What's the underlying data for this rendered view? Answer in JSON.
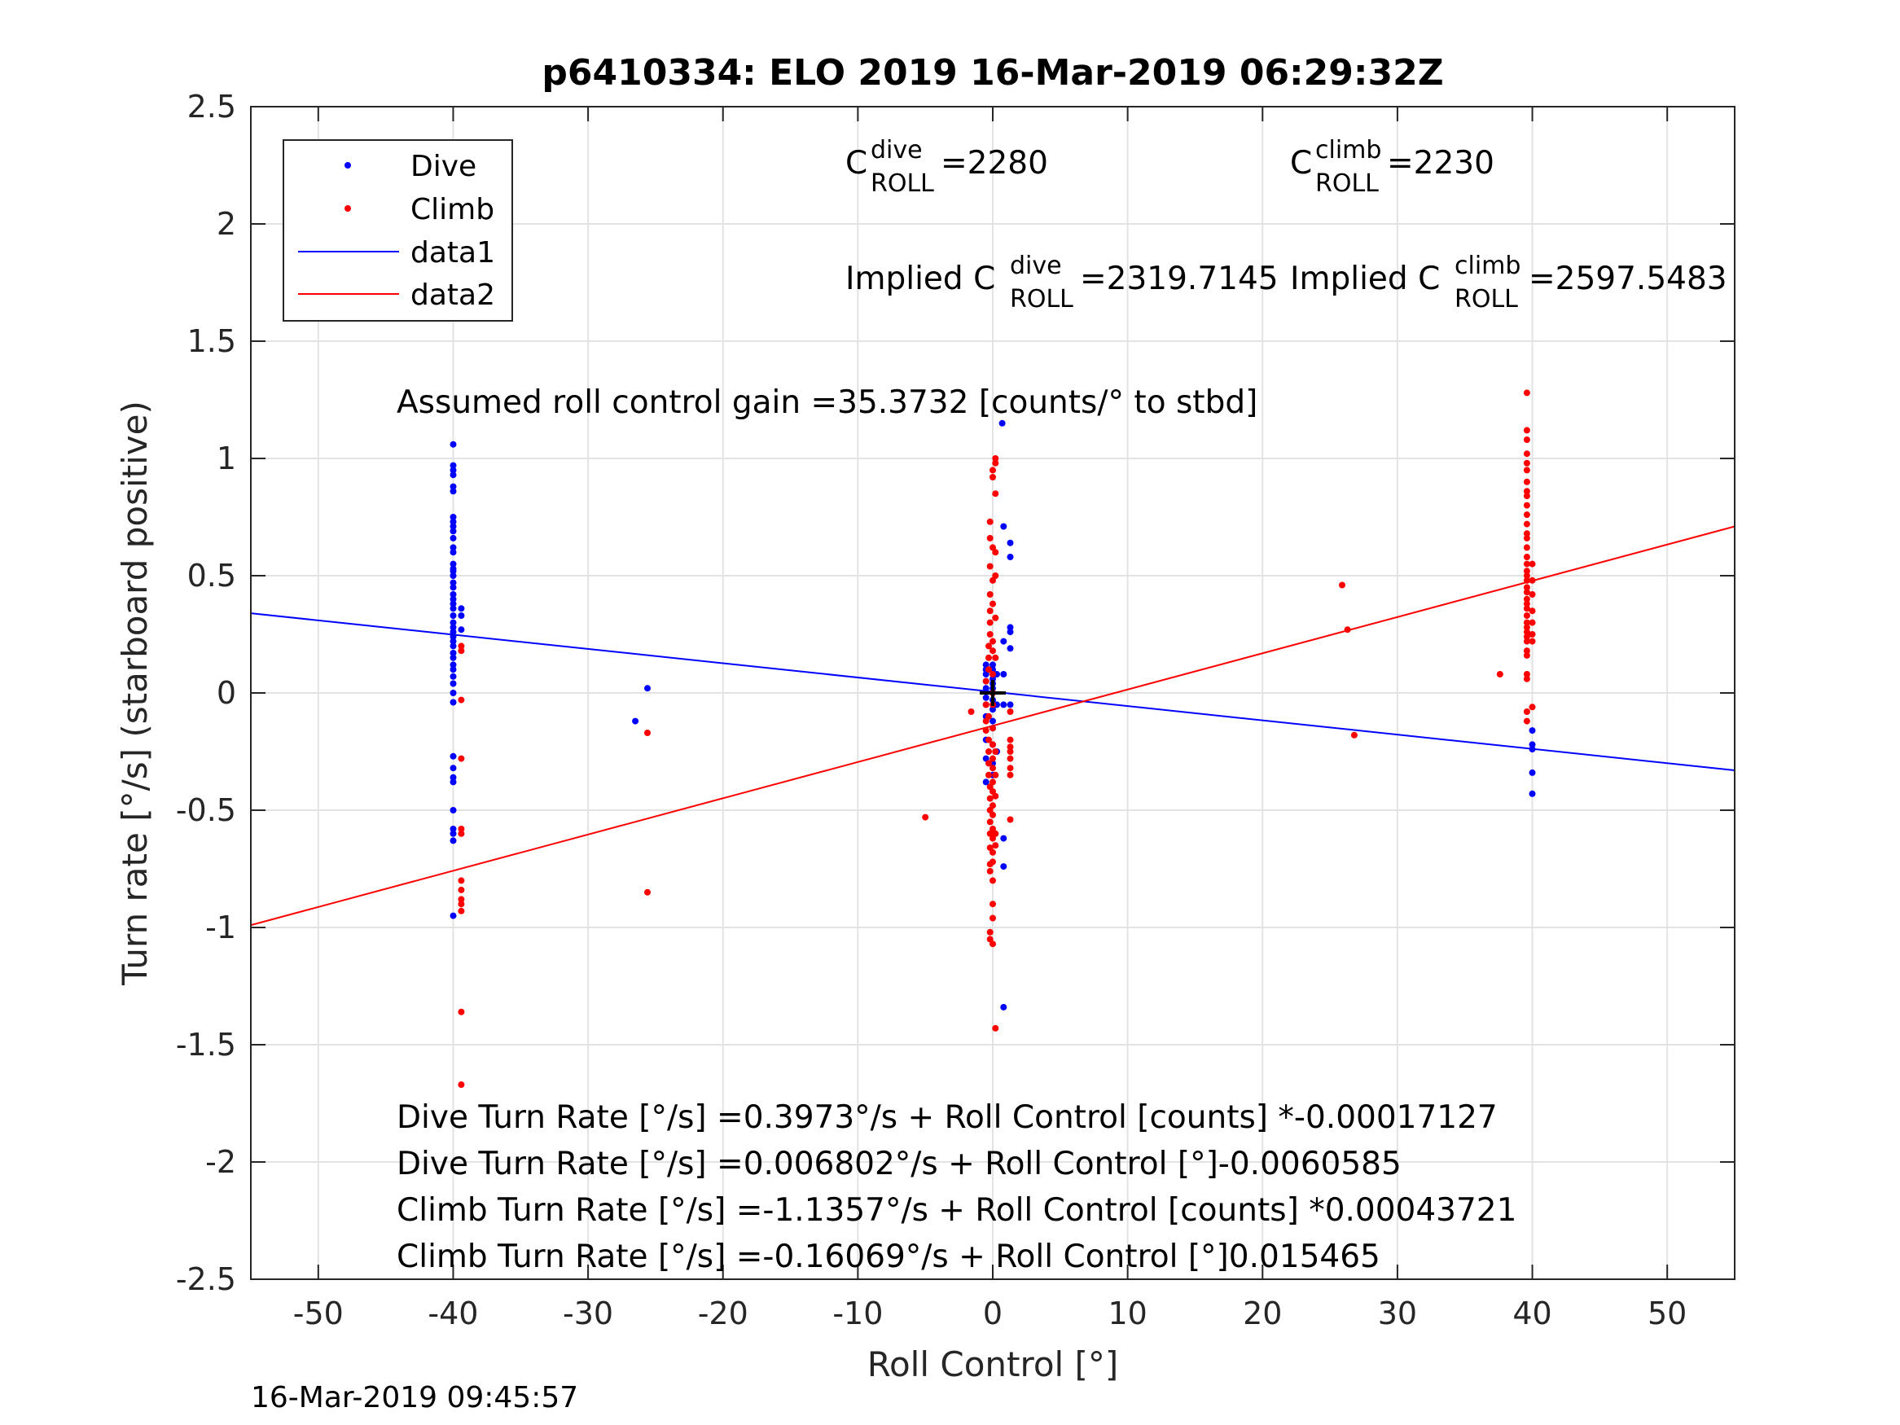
{
  "chart_data": {
    "type": "scatter",
    "title": "p6410334: ELO 2019 16-Mar-2019 06:29:32Z",
    "xlabel": "Roll Control [°]",
    "ylabel": "Turn rate [°/s] (starboard positive)",
    "xlim": [
      -55,
      55
    ],
    "ylim": [
      -2.5,
      2.5
    ],
    "xticks": [
      -50,
      -40,
      -30,
      -20,
      -10,
      0,
      10,
      20,
      30,
      40,
      50
    ],
    "yticks": [
      -2.5,
      -2,
      -1.5,
      -1,
      -0.5,
      0,
      0.5,
      1,
      1.5,
      2,
      2.5
    ],
    "xtick_labels": [
      "-50",
      "-40",
      "-30",
      "-20",
      "-10",
      "0",
      "10",
      "20",
      "30",
      "40",
      "50"
    ],
    "ytick_labels": [
      "-2.5",
      "-2",
      "-1.5",
      "-1",
      "-0.5",
      "0",
      "0.5",
      "1",
      "1.5",
      "2",
      "2.5"
    ],
    "grid": true,
    "legend_position": "top-left",
    "series": [
      {
        "name": "Dive",
        "kind": "scatter",
        "color": "#0000ff",
        "points": [
          [
            -40,
            1.06
          ],
          [
            -40,
            0.97
          ],
          [
            -40,
            0.95
          ],
          [
            -40,
            0.93
          ],
          [
            -40,
            0.88
          ],
          [
            -40,
            0.86
          ],
          [
            -40,
            0.75
          ],
          [
            -40,
            0.73
          ],
          [
            -40,
            0.71
          ],
          [
            -40,
            0.69
          ],
          [
            -40,
            0.66
          ],
          [
            -40,
            0.62
          ],
          [
            -40,
            0.6
          ],
          [
            -40,
            0.55
          ],
          [
            -40,
            0.53
          ],
          [
            -40,
            0.52
          ],
          [
            -40,
            0.5
          ],
          [
            -40,
            0.47
          ],
          [
            -40,
            0.45
          ],
          [
            -40,
            0.42
          ],
          [
            -40,
            0.4
          ],
          [
            -40,
            0.38
          ],
          [
            -40,
            0.36
          ],
          [
            -40,
            0.33
          ],
          [
            -40,
            0.3
          ],
          [
            -40,
            0.28
          ],
          [
            -40,
            0.26
          ],
          [
            -40,
            0.24
          ],
          [
            -40,
            0.22
          ],
          [
            -40,
            0.2
          ],
          [
            -40,
            0.17
          ],
          [
            -40,
            0.15
          ],
          [
            -40,
            0.12
          ],
          [
            -40,
            0.1
          ],
          [
            -40,
            0.07
          ],
          [
            -40,
            0.04
          ],
          [
            -40,
            0.0
          ],
          [
            -40,
            -0.04
          ],
          [
            -40,
            -0.27
          ],
          [
            -40,
            -0.32
          ],
          [
            -40,
            -0.36
          ],
          [
            -40,
            -0.38
          ],
          [
            -40,
            -0.5
          ],
          [
            -40,
            -0.58
          ],
          [
            -40,
            -0.6
          ],
          [
            -40,
            -0.63
          ],
          [
            -40,
            -0.95
          ],
          [
            -39.4,
            0.36
          ],
          [
            -39.4,
            0.33
          ],
          [
            -39.4,
            0.27
          ],
          [
            -26.5,
            -0.12
          ],
          [
            -25.6,
            0.02
          ],
          [
            -0.5,
            0.12
          ],
          [
            -0.5,
            0.1
          ],
          [
            -0.5,
            0.08
          ],
          [
            -0.5,
            0.05
          ],
          [
            -0.5,
            0.02
          ],
          [
            -0.5,
            -0.02
          ],
          [
            -0.5,
            -0.05
          ],
          [
            -0.5,
            -0.1
          ],
          [
            -0.5,
            -0.2
          ],
          [
            -0.5,
            -0.28
          ],
          [
            -0.5,
            -0.38
          ],
          [
            0,
            0.12
          ],
          [
            0,
            0.1
          ],
          [
            0,
            0.06
          ],
          [
            0,
            0.04
          ],
          [
            0,
            0.02
          ],
          [
            0,
            0.0
          ],
          [
            0,
            -0.03
          ],
          [
            0,
            -0.07
          ],
          [
            0,
            -0.12
          ],
          [
            0,
            -0.15
          ],
          [
            0,
            -0.22
          ],
          [
            0,
            -0.3
          ],
          [
            0,
            -0.35
          ],
          [
            0.3,
            0.08
          ],
          [
            0.3,
            -0.05
          ],
          [
            0.3,
            -0.25
          ],
          [
            0.7,
            1.15
          ],
          [
            0.8,
            0.71
          ],
          [
            0.8,
            0.22
          ],
          [
            0.8,
            0.08
          ],
          [
            0.8,
            -0.05
          ],
          [
            0.8,
            -0.62
          ],
          [
            0.8,
            -0.74
          ],
          [
            0.8,
            -1.34
          ],
          [
            1.3,
            0.64
          ],
          [
            1.3,
            0.58
          ],
          [
            1.3,
            0.28
          ],
          [
            1.3,
            0.26
          ],
          [
            1.3,
            0.19
          ],
          [
            1.3,
            -0.05
          ],
          [
            40,
            -0.16
          ],
          [
            40,
            -0.22
          ],
          [
            40,
            -0.24
          ],
          [
            40,
            -0.34
          ],
          [
            40,
            -0.43
          ]
        ]
      },
      {
        "name": "Climb",
        "kind": "scatter",
        "color": "#ff0000",
        "points": [
          [
            -39.4,
            0.2
          ],
          [
            -39.4,
            0.18
          ],
          [
            -39.4,
            -0.03
          ],
          [
            -39.4,
            -0.28
          ],
          [
            -39.4,
            -0.58
          ],
          [
            -39.4,
            -0.6
          ],
          [
            -39.4,
            -0.8
          ],
          [
            -39.4,
            -0.84
          ],
          [
            -39.4,
            -0.88
          ],
          [
            -39.4,
            -0.9
          ],
          [
            -39.4,
            -0.93
          ],
          [
            -39.4,
            -1.36
          ],
          [
            -39.4,
            -1.67
          ],
          [
            -25.6,
            -0.17
          ],
          [
            -25.6,
            -0.85
          ],
          [
            -5,
            -0.53
          ],
          [
            -1.6,
            -0.08
          ],
          [
            -0.5,
            0.05
          ],
          [
            -0.5,
            -0.05
          ],
          [
            -0.5,
            -0.12
          ],
          [
            -0.5,
            -0.16
          ],
          [
            -0.3,
            0.2
          ],
          [
            -0.3,
            0.15
          ],
          [
            -0.3,
            0.1
          ],
          [
            -0.3,
            -0.1
          ],
          [
            -0.3,
            -0.2
          ],
          [
            -0.3,
            -0.25
          ],
          [
            -0.3,
            -0.3
          ],
          [
            -0.3,
            -0.35
          ],
          [
            -0.2,
            0.73
          ],
          [
            -0.2,
            0.66
          ],
          [
            -0.2,
            0.54
          ],
          [
            -0.2,
            0.42
          ],
          [
            -0.2,
            0.35
          ],
          [
            -0.2,
            0.3
          ],
          [
            -0.2,
            0.25
          ],
          [
            -0.2,
            -0.4
          ],
          [
            -0.2,
            -0.45
          ],
          [
            -0.2,
            -0.5
          ],
          [
            -0.2,
            -0.55
          ],
          [
            -0.2,
            -0.6
          ],
          [
            -0.2,
            -0.66
          ],
          [
            -0.2,
            -0.73
          ],
          [
            -0.2,
            -0.76
          ],
          [
            -0.2,
            -1.02
          ],
          [
            -0.2,
            -1.05
          ],
          [
            0,
            0.92
          ],
          [
            0,
            0.95
          ],
          [
            0,
            0.62
          ],
          [
            0,
            0.48
          ],
          [
            0,
            0.38
          ],
          [
            0,
            0.22
          ],
          [
            0,
            0.18
          ],
          [
            0,
            0.08
          ],
          [
            0,
            0.0
          ],
          [
            0,
            -0.05
          ],
          [
            0,
            -0.15
          ],
          [
            0,
            -0.22
          ],
          [
            0,
            -0.28
          ],
          [
            0,
            -0.32
          ],
          [
            0,
            -0.38
          ],
          [
            0,
            -0.42
          ],
          [
            0,
            -0.48
          ],
          [
            0,
            -0.52
          ],
          [
            0,
            -0.58
          ],
          [
            0,
            -0.62
          ],
          [
            0,
            -0.68
          ],
          [
            0,
            -0.72
          ],
          [
            0,
            -0.8
          ],
          [
            0,
            -0.9
          ],
          [
            0,
            -0.96
          ],
          [
            0,
            -1.07
          ],
          [
            0.2,
            1.0
          ],
          [
            0.2,
            0.98
          ],
          [
            0.2,
            0.85
          ],
          [
            0.2,
            0.6
          ],
          [
            0.2,
            0.5
          ],
          [
            0.2,
            0.32
          ],
          [
            0.2,
            0.15
          ],
          [
            0.2,
            -0.25
          ],
          [
            0.2,
            -0.35
          ],
          [
            0.2,
            -0.44
          ],
          [
            0.2,
            -0.6
          ],
          [
            0.2,
            -0.65
          ],
          [
            0.2,
            -1.43
          ],
          [
            1.3,
            -0.08
          ],
          [
            1.3,
            -0.2
          ],
          [
            1.3,
            -0.23
          ],
          [
            1.3,
            -0.25
          ],
          [
            1.3,
            -0.28
          ],
          [
            1.3,
            -0.32
          ],
          [
            1.3,
            -0.35
          ],
          [
            1.3,
            -0.54
          ],
          [
            25.9,
            0.46
          ],
          [
            26.3,
            0.27
          ],
          [
            26.8,
            -0.18
          ],
          [
            37.6,
            0.08
          ],
          [
            39.6,
            1.28
          ],
          [
            39.6,
            1.12
          ],
          [
            39.6,
            1.08
          ],
          [
            39.6,
            1.02
          ],
          [
            39.6,
            0.98
          ],
          [
            39.6,
            0.95
          ],
          [
            39.6,
            0.9
          ],
          [
            39.6,
            0.86
          ],
          [
            39.6,
            0.84
          ],
          [
            39.6,
            0.8
          ],
          [
            39.6,
            0.76
          ],
          [
            39.6,
            0.72
          ],
          [
            39.6,
            0.68
          ],
          [
            39.6,
            0.66
          ],
          [
            39.6,
            0.62
          ],
          [
            39.6,
            0.58
          ],
          [
            39.6,
            0.55
          ],
          [
            39.6,
            0.52
          ],
          [
            39.6,
            0.5
          ],
          [
            39.6,
            0.48
          ],
          [
            39.6,
            0.45
          ],
          [
            39.6,
            0.43
          ],
          [
            39.6,
            0.4
          ],
          [
            39.6,
            0.38
          ],
          [
            39.6,
            0.36
          ],
          [
            39.6,
            0.33
          ],
          [
            39.6,
            0.3
          ],
          [
            39.6,
            0.28
          ],
          [
            39.6,
            0.26
          ],
          [
            39.6,
            0.24
          ],
          [
            39.6,
            0.22
          ],
          [
            39.6,
            0.18
          ],
          [
            39.6,
            0.16
          ],
          [
            39.6,
            0.08
          ],
          [
            39.6,
            0.06
          ],
          [
            39.6,
            -0.08
          ],
          [
            39.6,
            -0.12
          ],
          [
            40,
            0.55
          ],
          [
            40,
            0.48
          ],
          [
            40,
            0.42
          ],
          [
            40,
            0.35
          ],
          [
            40,
            0.3
          ],
          [
            40,
            0.25
          ],
          [
            40,
            0.22
          ],
          [
            40,
            -0.06
          ]
        ]
      },
      {
        "name": "data1",
        "kind": "line",
        "color": "#0000ff",
        "points": [
          [
            -55,
            0.34
          ],
          [
            55,
            -0.33
          ]
        ]
      },
      {
        "name": "data2",
        "kind": "line",
        "color": "#ff0000",
        "points": [
          [
            -55,
            -0.99
          ],
          [
            55,
            0.71
          ]
        ]
      }
    ],
    "origin_marker": {
      "x": 0,
      "y": 0,
      "color": "#000000"
    }
  },
  "annotations": {
    "c_dive": {
      "base": "C",
      "sup": "dive",
      "sub": "ROLL",
      "value": " =2280"
    },
    "c_climb": {
      "base": "C",
      "sup": "climb",
      "sub": "ROLL",
      "value": " =2230"
    },
    "implied_dive": {
      "prefix": "Implied C",
      "sup": "dive",
      "sub": "ROLL",
      "value": " =2319.7145"
    },
    "implied_climb": {
      "prefix": "Implied C",
      "sup": "climb",
      "sub": "ROLL",
      "value": " =2597.5483"
    },
    "gain": "Assumed roll control gain =35.3732 [counts/° to stbd]",
    "eq1": "Dive Turn Rate [°/s] =0.3973°/s + Roll Control [counts] *-0.00017127",
    "eq2": "Dive Turn Rate [°/s] =0.006802°/s + Roll Control [°]-0.0060585",
    "eq3": "Climb Turn Rate [°/s] =-1.1357°/s + Roll Control [counts] *0.00043721",
    "eq4": "Climb Turn Rate [°/s] =-0.16069°/s + Roll Control [°]0.015465"
  },
  "timestamp": "16-Mar-2019 09:45:57"
}
